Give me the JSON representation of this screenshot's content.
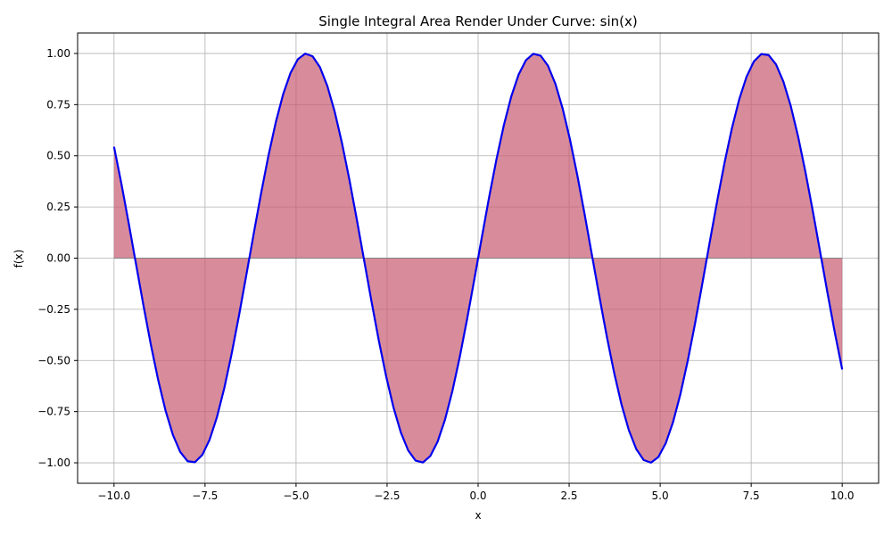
{
  "chart_data": {
    "type": "area",
    "title": "Single Integral Area Render Under Curve: sin(x)",
    "xlabel": "x",
    "ylabel": "f(x)",
    "function": "sin(x)",
    "x_start": -10,
    "x_end": 10,
    "sample_count": 100,
    "xlim": [
      -11.0,
      11.0
    ],
    "ylim": [
      -1.1,
      1.1
    ],
    "xticks": [
      -10.0,
      -7.5,
      -5.0,
      -2.5,
      0.0,
      2.5,
      5.0,
      7.5,
      10.0
    ],
    "xtick_labels": [
      "−10.0",
      "−7.5",
      "−5.0",
      "−2.5",
      "0.0",
      "2.5",
      "5.0",
      "7.5",
      "10.0"
    ],
    "yticks": [
      -1.0,
      -0.75,
      -0.5,
      -0.25,
      0.0,
      0.25,
      0.5,
      0.75,
      1.0
    ],
    "ytick_labels": [
      "−1.00",
      "−0.75",
      "−0.50",
      "−0.25",
      "0.00",
      "0.25",
      "0.50",
      "0.75",
      "1.00"
    ],
    "grid": true,
    "colors": {
      "line": "#0000ee",
      "fill": "#c85a70",
      "grid": "#b0b0b0",
      "baseline": "#808080"
    }
  }
}
